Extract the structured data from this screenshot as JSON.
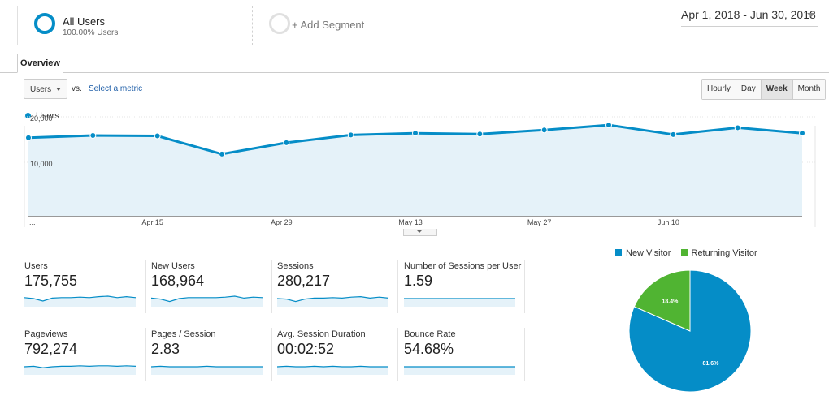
{
  "segments": {
    "all_users": {
      "title": "All Users",
      "subtitle": "100.00% Users"
    },
    "add_segment": {
      "label": "+ Add Segment"
    }
  },
  "date_range": "Apr 1, 2018 - Jun 30, 2018",
  "tabs": {
    "overview": "Overview"
  },
  "chart_controls": {
    "metric_select": "Users",
    "vs": "vs.",
    "select_metric": "Select a metric",
    "granularity": [
      "Hourly",
      "Day",
      "Week",
      "Month"
    ],
    "granularity_selected": "Week"
  },
  "chart_data": [
    {
      "type": "area",
      "series": [
        {
          "name": "Users",
          "color": "#058dc7",
          "values": [
            15400,
            15900,
            15800,
            11800,
            14300,
            16000,
            16400,
            16200,
            17100,
            18200,
            16100,
            17600,
            16400
          ]
        }
      ],
      "x_tick_labels": [
        "...",
        "Apr 15",
        "Apr 29",
        "May 13",
        "May 27",
        "Jun 10"
      ],
      "y_tick_labels": [
        "20,000",
        "10,000"
      ],
      "ylim": [
        0,
        20000
      ],
      "grid": true,
      "legend": "top-left"
    },
    {
      "type": "pie",
      "labels": [
        "New Visitor",
        "Returning Visitor"
      ],
      "values": [
        81.6,
        18.4
      ],
      "value_labels": [
        "81.6%",
        "18.4%"
      ],
      "colors": [
        "#058dc7",
        "#50b432"
      ],
      "legend": "top"
    }
  ],
  "metrics": [
    {
      "label": "Users",
      "value": "175,755",
      "spark": [
        52,
        50,
        45,
        51,
        52,
        52,
        53,
        52,
        54,
        55,
        52,
        54,
        52
      ]
    },
    {
      "label": "New Users",
      "value": "168,964",
      "spark": [
        51,
        49,
        44,
        50,
        52,
        52,
        52,
        52,
        53,
        55,
        51,
        53,
        52
      ]
    },
    {
      "label": "Sessions",
      "value": "280,217",
      "spark": [
        50,
        49,
        44,
        49,
        51,
        51,
        52,
        51,
        53,
        54,
        51,
        53,
        51
      ]
    },
    {
      "label": "Number of Sessions per User",
      "value": "1.59",
      "spark": [
        50,
        50,
        50,
        50,
        50,
        50,
        50,
        50,
        50,
        50,
        50,
        50,
        50
      ]
    },
    {
      "label": "Pageviews",
      "value": "792,274",
      "spark": [
        50,
        51,
        48,
        50,
        51,
        51,
        52,
        51,
        52,
        52,
        51,
        52,
        51
      ]
    },
    {
      "label": "Pages / Session",
      "value": "2.83",
      "spark": [
        50,
        51,
        50,
        50,
        50,
        50,
        51,
        50,
        50,
        50,
        50,
        50,
        50
      ]
    },
    {
      "label": "Avg. Session Duration",
      "value": "00:02:52",
      "spark": [
        50,
        51,
        50,
        50,
        51,
        50,
        51,
        50,
        50,
        51,
        50,
        50,
        50
      ]
    },
    {
      "label": "Bounce Rate",
      "value": "54.68%",
      "spark": [
        50,
        50,
        50,
        50,
        50,
        50,
        50,
        50,
        50,
        50,
        50,
        50,
        50
      ]
    }
  ]
}
